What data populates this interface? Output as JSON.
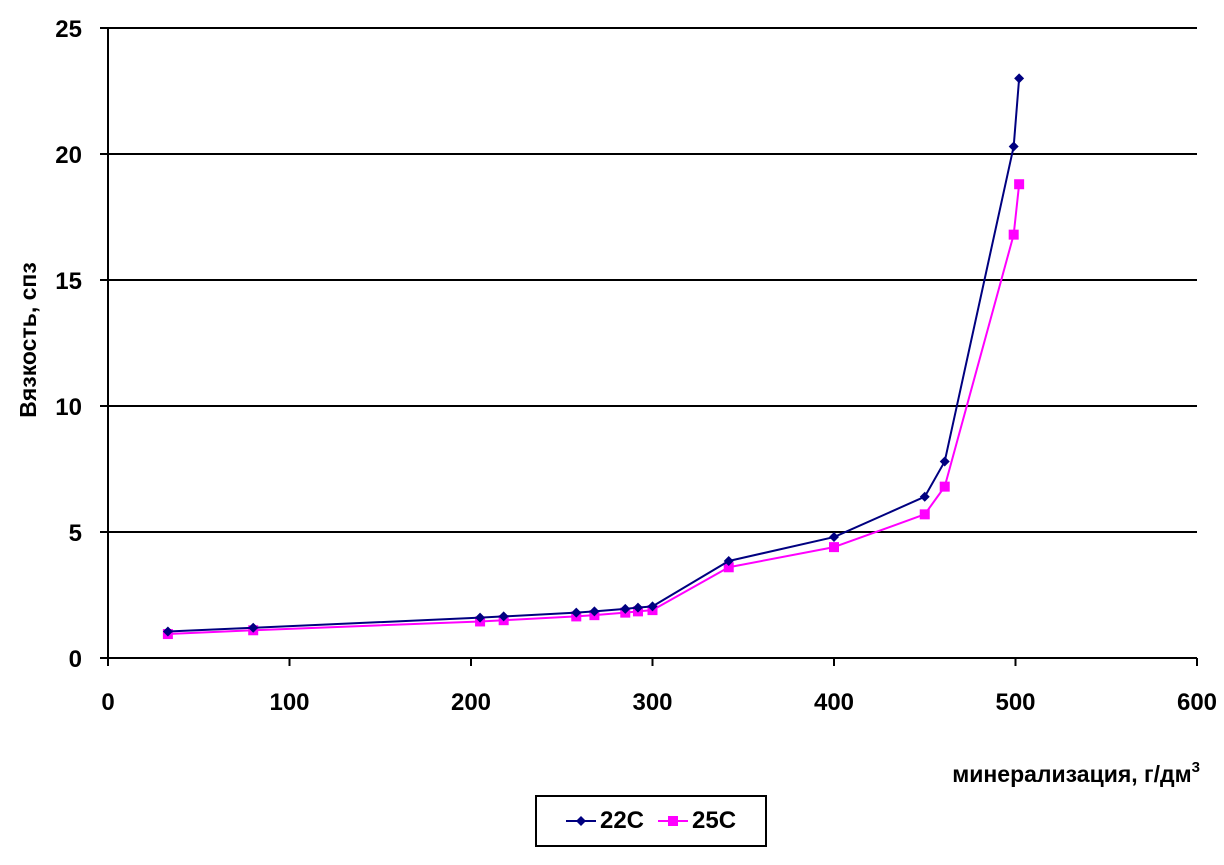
{
  "chart_data": {
    "type": "line",
    "title": "",
    "xlabel": "минерализация, г/дм",
    "xlabel_superscript": "3",
    "ylabel": "Вязкость, спз",
    "xlim": [
      0,
      600
    ],
    "ylim": [
      0,
      25
    ],
    "x_ticks": [
      "0",
      "100",
      "200",
      "300",
      "400",
      "500",
      "600"
    ],
    "y_ticks": [
      "0",
      "5",
      "10",
      "15",
      "20",
      "25"
    ],
    "grid": "horizontal",
    "legend_position": "bottom",
    "series": [
      {
        "name": "22C",
        "color": "#000080",
        "marker": "diamond",
        "x": [
          33,
          80,
          205,
          218,
          258,
          268,
          285,
          292,
          300,
          342,
          400,
          450,
          461,
          499,
          502
        ],
        "y": [
          1.05,
          1.2,
          1.6,
          1.65,
          1.8,
          1.85,
          1.95,
          2.0,
          2.05,
          3.85,
          4.8,
          6.4,
          7.8,
          20.3,
          23.0
        ]
      },
      {
        "name": "25C",
        "color": "#FF00FF",
        "marker": "square",
        "x": [
          33,
          80,
          205,
          218,
          258,
          268,
          285,
          292,
          300,
          342,
          400,
          450,
          461,
          499,
          502
        ],
        "y": [
          0.95,
          1.1,
          1.45,
          1.5,
          1.65,
          1.7,
          1.8,
          1.85,
          1.9,
          3.6,
          4.4,
          5.7,
          6.8,
          16.8,
          18.8
        ]
      }
    ]
  }
}
